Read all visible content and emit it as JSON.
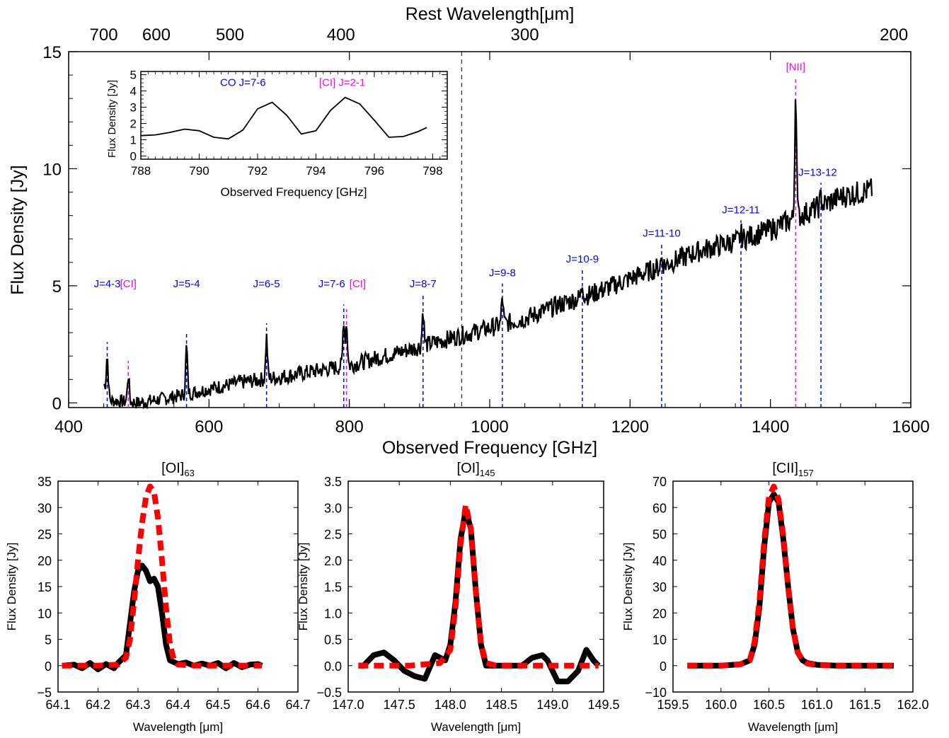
{
  "colors": {
    "co": "#0000ff",
    "ci": "#ff00ff",
    "fit": "#ff0000",
    "data": "#000000"
  },
  "chart_data": [
    {
      "id": "main",
      "type": "line",
      "xlabel": "Observed Frequency [GHz]",
      "ylabel": "Flux Density [Jy]",
      "x2label": "Rest Wavelength[μm]",
      "xlim": [
        400,
        1600
      ],
      "ylim": [
        -0.2,
        15
      ],
      "x_ticks": [
        400,
        600,
        800,
        1000,
        1200,
        1400,
        1600
      ],
      "y_ticks": [
        0,
        5,
        10,
        15
      ],
      "top_ticks": [
        {
          "label": "700",
          "x": 450
        },
        {
          "label": "600",
          "x": 525
        },
        {
          "label": "500",
          "x": 630
        },
        {
          "label": "400",
          "x": 788
        },
        {
          "label": "300",
          "x": 1050
        },
        {
          "label": "200",
          "x": 1576
        }
      ],
      "vertical_reference_x": 960,
      "continuum": [
        [
          450,
          0.8
        ],
        [
          460,
          0.1
        ],
        [
          500,
          0.0
        ],
        [
          550,
          0.25
        ],
        [
          600,
          0.6
        ],
        [
          650,
          0.9
        ],
        [
          700,
          1.1
        ],
        [
          750,
          1.35
        ],
        [
          800,
          1.6
        ],
        [
          850,
          2.0
        ],
        [
          900,
          2.4
        ],
        [
          950,
          2.8
        ],
        [
          1000,
          3.2
        ],
        [
          1050,
          3.6
        ],
        [
          1100,
          4.2
        ],
        [
          1150,
          4.7
        ],
        [
          1200,
          5.3
        ],
        [
          1250,
          5.9
        ],
        [
          1300,
          6.5
        ],
        [
          1350,
          6.9
        ],
        [
          1400,
          7.4
        ],
        [
          1450,
          8.1
        ],
        [
          1500,
          8.8
        ],
        [
          1545,
          9.1
        ]
      ],
      "lines": [
        {
          "label": "J=4-3",
          "x": 455,
          "peak": 2.0,
          "kind": "co"
        },
        {
          "label": "[CI]",
          "x": 485,
          "peak": 1.2,
          "kind": "ci"
        },
        {
          "label": "J=5-4",
          "x": 568,
          "peak": 2.4,
          "kind": "co"
        },
        {
          "label": "J=6-5",
          "x": 682,
          "peak": 2.8,
          "kind": "co"
        },
        {
          "label": "J=7-6",
          "x": 792,
          "peak": 3.6,
          "kind": "co"
        },
        {
          "label": "[CI]",
          "x": 796,
          "peak": 3.4,
          "kind": "ci"
        },
        {
          "label": "J=8-7",
          "x": 905,
          "peak": 4.0,
          "kind": "co"
        },
        {
          "label": "J=9-8",
          "x": 1018,
          "peak": 4.5,
          "kind": "co"
        },
        {
          "label": "J=10-9",
          "x": 1132,
          "peak": 5.1,
          "kind": "co"
        },
        {
          "label": "J=11-10",
          "x": 1245,
          "peak": 6.2,
          "kind": "co"
        },
        {
          "label": "J=12-11",
          "x": 1358,
          "peak": 7.2,
          "kind": "co"
        },
        {
          "label": "[NII]",
          "x": 1436,
          "peak": 13.3,
          "kind": "ci"
        },
        {
          "label": "J=13-12",
          "x": 1472,
          "peak": 8.8,
          "kind": "co"
        }
      ]
    },
    {
      "id": "inset",
      "type": "line",
      "xlabel": "Observed Frequency [GHz]",
      "ylabel": "Flux Density [Jy]",
      "xlim": [
        788,
        798.5
      ],
      "ylim": [
        -0.2,
        5.2
      ],
      "x_ticks": [
        788,
        790,
        792,
        794,
        796,
        798
      ],
      "y_ticks": [
        0,
        1,
        2,
        3,
        4,
        5
      ],
      "annotations": [
        {
          "label": "CO J=7-6",
          "x": 791.5,
          "y": 4.3,
          "kind": "co"
        },
        {
          "label": "[CI] J=2-1",
          "x": 794.9,
          "y": 4.3,
          "kind": "ci"
        }
      ],
      "x": [
        788.0,
        788.5,
        789.0,
        789.5,
        790.0,
        790.5,
        791.0,
        791.5,
        792.0,
        792.5,
        793.0,
        793.5,
        794.0,
        794.5,
        795.0,
        795.5,
        796.0,
        796.5,
        797.0,
        797.5,
        797.8
      ],
      "y": [
        1.25,
        1.3,
        1.45,
        1.65,
        1.55,
        1.15,
        1.05,
        1.6,
        2.9,
        3.3,
        2.5,
        1.35,
        1.55,
        2.8,
        3.6,
        3.2,
        2.2,
        1.15,
        1.2,
        1.5,
        1.75
      ]
    },
    {
      "id": "oi63",
      "type": "line",
      "title": "[OI]",
      "title_sub": "63",
      "xlabel": "Wavelength [μm]",
      "ylabel": "Flux Density [Jy]",
      "xlim": [
        64.1,
        64.7
      ],
      "ylim": [
        -5,
        35
      ],
      "x_ticks": [
        "64.1",
        "64.2",
        "64.3",
        "64.4",
        "64.5",
        "64.6",
        "64.7"
      ],
      "y_ticks": [
        "−5",
        "0",
        "5",
        "10",
        "15",
        "20",
        "25",
        "30",
        "35"
      ],
      "series": [
        {
          "style": "data",
          "x": [
            64.11,
            64.14,
            64.16,
            64.18,
            64.2,
            64.22,
            64.24,
            64.25,
            64.27,
            64.28,
            64.29,
            64.3,
            64.31,
            64.32,
            64.33,
            64.34,
            64.35,
            64.36,
            64.37,
            64.38,
            64.4,
            64.42,
            64.44,
            64.46,
            64.48,
            64.5,
            64.52,
            64.54,
            64.56,
            64.58,
            64.6,
            64.61
          ],
          "y": [
            0,
            0.2,
            -0.5,
            0.5,
            -0.7,
            0.3,
            -0.5,
            0.5,
            2,
            8,
            14,
            18,
            19,
            18,
            16,
            16.5,
            15,
            10,
            4,
            1,
            0.3,
            0.6,
            0,
            0.4,
            0,
            0.5,
            -0.5,
            0.5,
            -0.3,
            0.2,
            0.3,
            0
          ]
        },
        {
          "style": "fit",
          "x": [
            64.11,
            64.2,
            64.25,
            64.27,
            64.28,
            64.29,
            64.3,
            64.31,
            64.32,
            64.33,
            64.34,
            64.35,
            64.36,
            64.37,
            64.38,
            64.39,
            64.4,
            64.45,
            64.5,
            64.55,
            64.61
          ],
          "y": [
            0,
            0,
            0.2,
            1.5,
            5,
            12,
            20,
            27,
            32,
            34,
            33,
            28,
            20,
            11,
            4,
            1,
            0.2,
            0,
            0,
            0,
            0
          ]
        }
      ]
    },
    {
      "id": "oi145",
      "type": "line",
      "title": "[OI]",
      "title_sub": "145",
      "xlabel": "Wavelength [μm]",
      "ylabel": "Flux Density [Jy]",
      "xlim": [
        147.0,
        149.5
      ],
      "ylim": [
        -0.5,
        3.5
      ],
      "x_ticks": [
        "147.0",
        "147.5",
        "148.0",
        "148.5",
        "149.0",
        "149.5"
      ],
      "y_ticks": [
        "−0.5",
        "0.0",
        "0.5",
        "1.0",
        "1.5",
        "2.0",
        "2.5",
        "3.0",
        "3.5"
      ],
      "series": [
        {
          "style": "data",
          "x": [
            147.1,
            147.15,
            147.25,
            147.35,
            147.45,
            147.55,
            147.65,
            147.75,
            147.85,
            147.9,
            147.95,
            148.0,
            148.05,
            148.1,
            148.15,
            148.2,
            148.25,
            148.3,
            148.35,
            148.45,
            148.55,
            148.7,
            148.8,
            148.9,
            148.95,
            149.05,
            149.15,
            149.25,
            149.33,
            149.4,
            149.45
          ],
          "y": [
            0,
            0,
            0.2,
            0.25,
            0.1,
            -0.1,
            -0.2,
            -0.25,
            0.2,
            0.15,
            0.1,
            0.4,
            1.2,
            2.4,
            2.95,
            2.6,
            1.4,
            0.4,
            0,
            0,
            0,
            0,
            0.15,
            0.2,
            0.1,
            -0.3,
            -0.3,
            -0.1,
            0.3,
            0.1,
            0
          ]
        },
        {
          "style": "fit",
          "x": [
            147.1,
            147.6,
            147.9,
            148.0,
            148.05,
            148.1,
            148.15,
            148.2,
            148.25,
            148.3,
            148.35,
            148.45,
            148.7,
            149.0,
            149.45
          ],
          "y": [
            0,
            0,
            0.05,
            0.3,
            1.1,
            2.3,
            3.05,
            2.6,
            1.4,
            0.4,
            0.05,
            0,
            0,
            0,
            0
          ]
        }
      ]
    },
    {
      "id": "cii157",
      "type": "line",
      "title": "[CII]",
      "title_sub": "157",
      "xlabel": "Wavelength [μm]",
      "ylabel": "Flux Density [Jy]",
      "xlim": [
        159.5,
        162.0
      ],
      "ylim": [
        -10,
        70
      ],
      "x_ticks": [
        "159.5",
        "160.0",
        "160.5",
        "161.0",
        "161.5",
        "162.0"
      ],
      "y_ticks": [
        "−10",
        "0",
        "10",
        "20",
        "30",
        "40",
        "50",
        "60",
        "70"
      ],
      "series": [
        {
          "style": "data",
          "x": [
            159.65,
            160.0,
            160.2,
            160.3,
            160.35,
            160.4,
            160.45,
            160.5,
            160.55,
            160.6,
            160.65,
            160.7,
            160.75,
            160.8,
            160.85,
            160.9,
            161.0,
            161.2,
            161.5,
            161.8
          ],
          "y": [
            0,
            0,
            0.5,
            2,
            8,
            22,
            45,
            62,
            65,
            62,
            48,
            30,
            14,
            5,
            2,
            1,
            0.3,
            0,
            0,
            0
          ]
        },
        {
          "style": "fit",
          "x": [
            159.65,
            160.0,
            160.2,
            160.3,
            160.35,
            160.4,
            160.45,
            160.5,
            160.55,
            160.6,
            160.65,
            160.7,
            160.75,
            160.8,
            160.85,
            160.9,
            161.0,
            161.2,
            161.5,
            161.8
          ],
          "y": [
            0,
            0,
            0.5,
            2,
            9,
            24,
            47,
            64,
            68,
            63,
            49,
            30,
            14,
            5,
            2,
            0.8,
            0.2,
            0,
            0,
            0
          ]
        }
      ]
    }
  ]
}
